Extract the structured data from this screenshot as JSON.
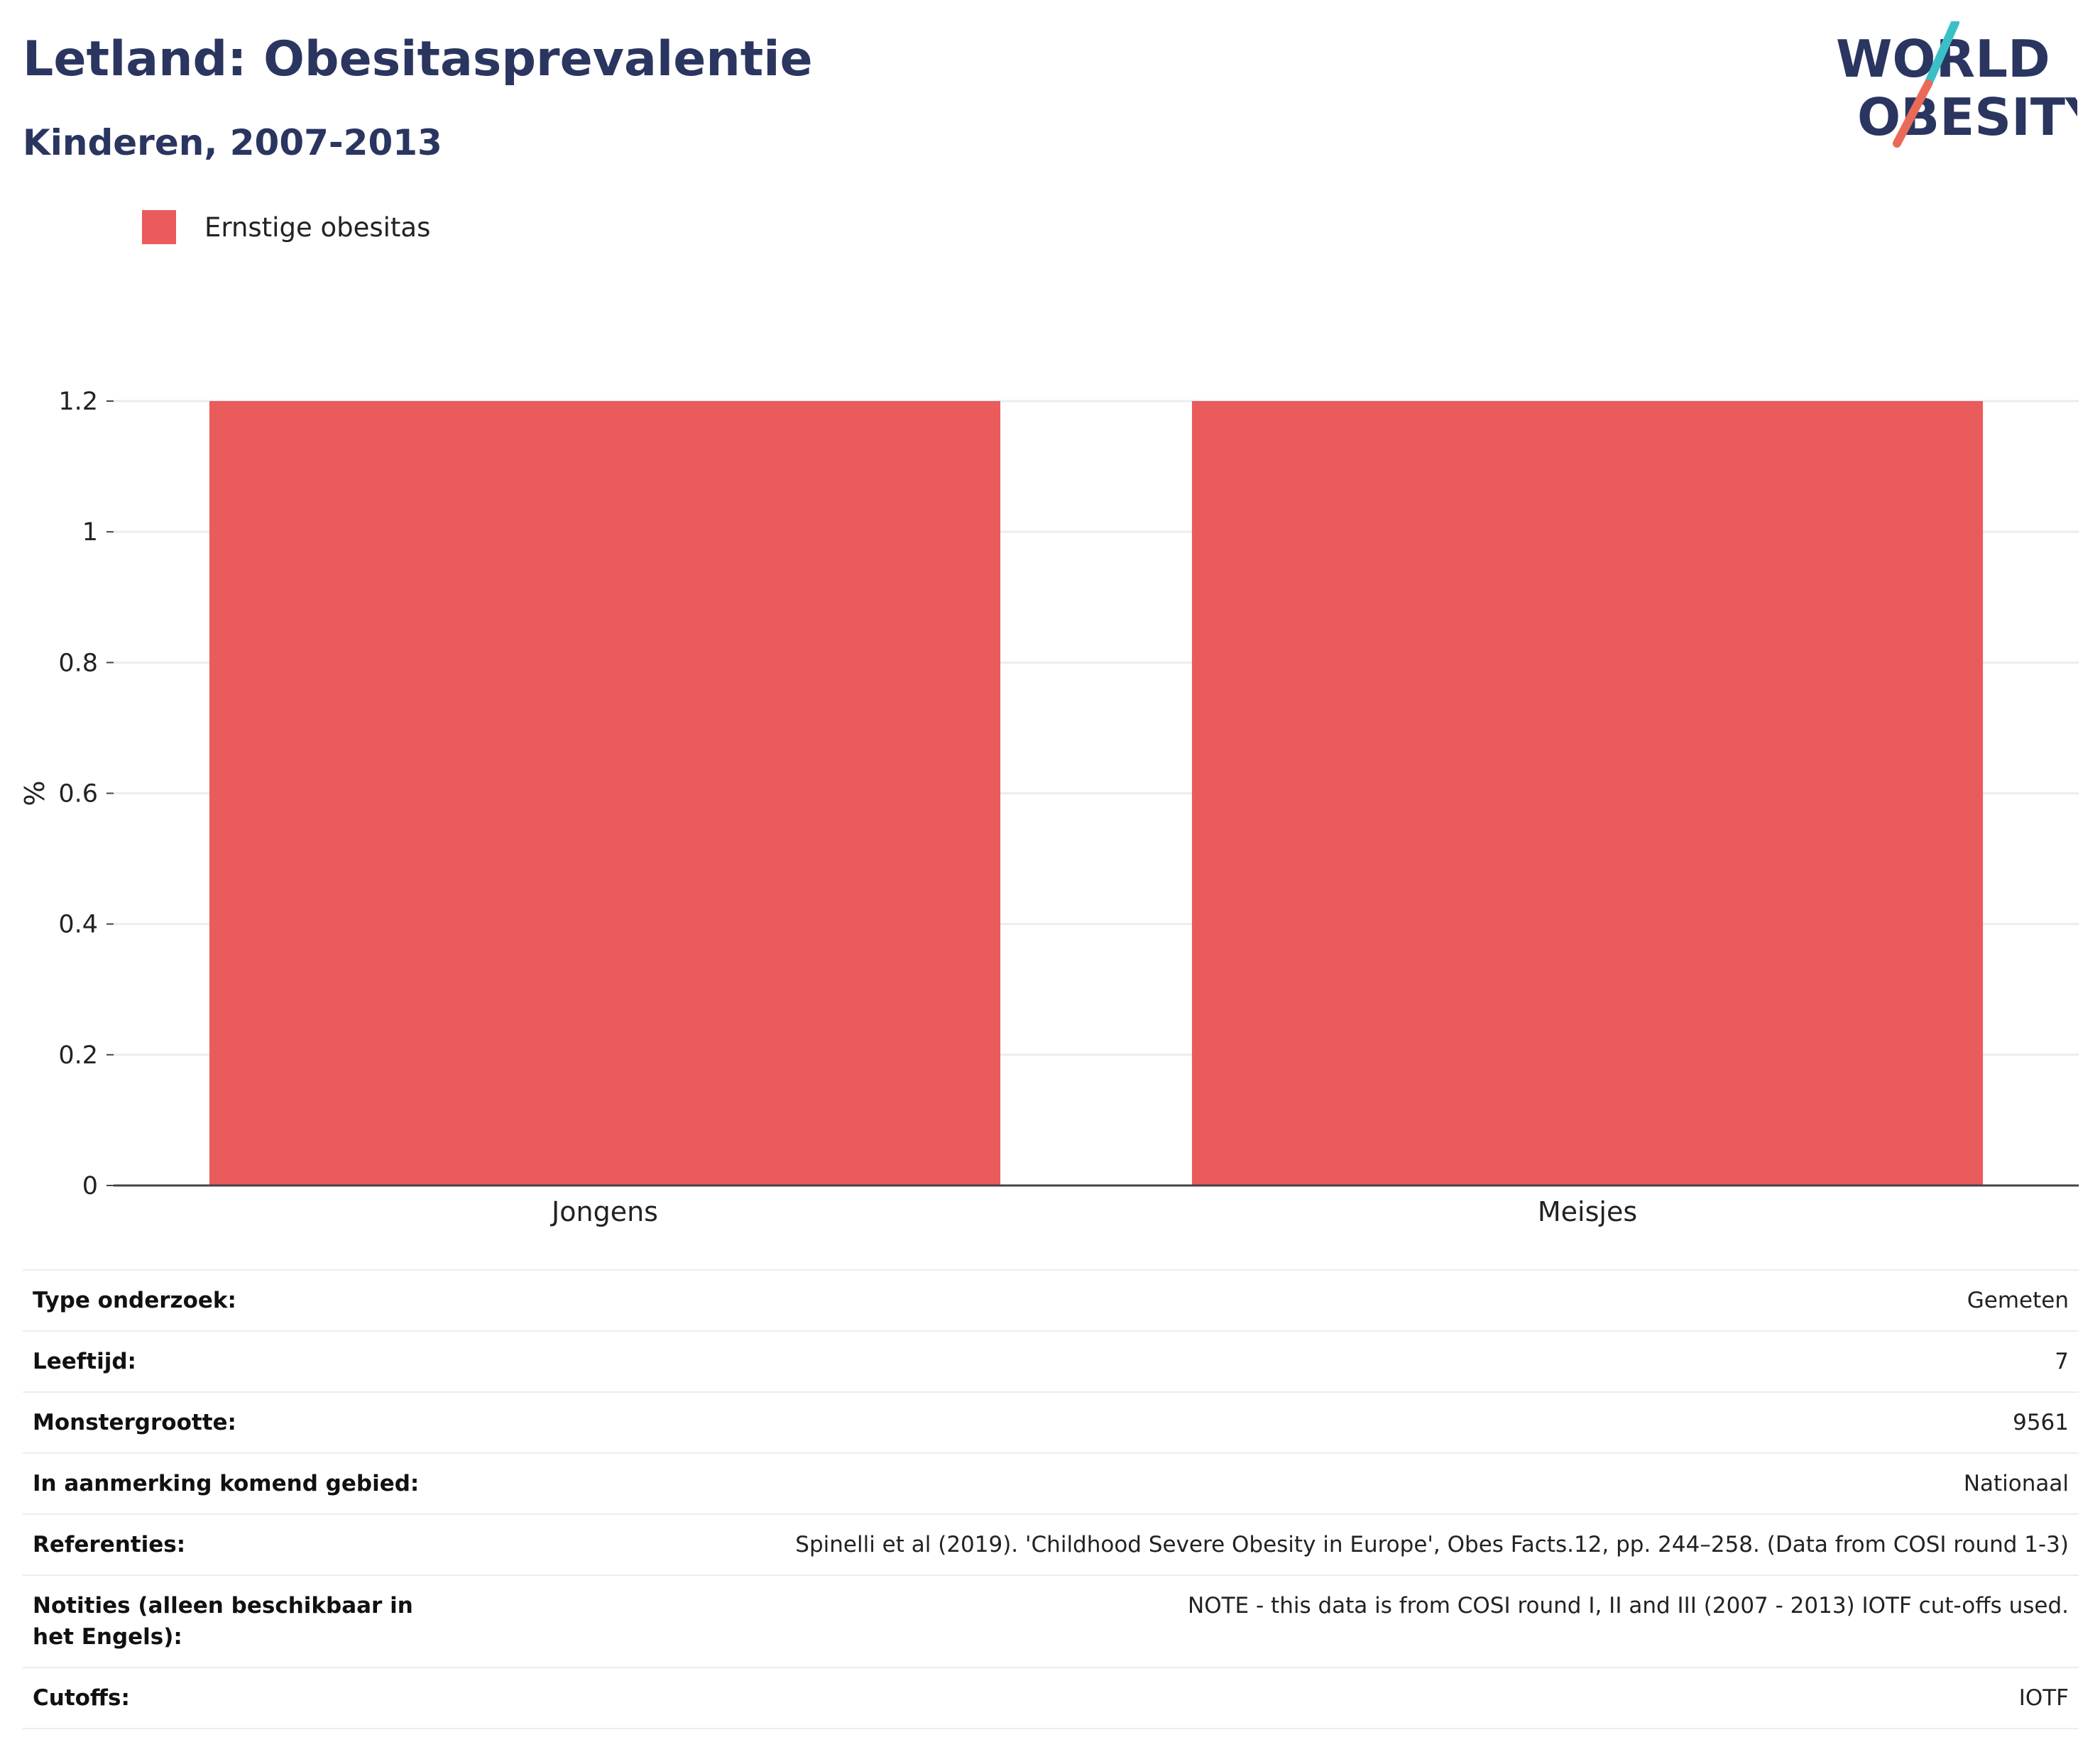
{
  "header": {
    "title": "Letland: Obesitasprevalentie",
    "subtitle": "Kinderen, 2007-2013"
  },
  "logo": {
    "line1": "WORLD",
    "line2": "OBESITY"
  },
  "colors": {
    "bar": "#ea5b5c",
    "title": "#2a3560",
    "logo_slash_top": "#3bbfc6",
    "logo_slash_bottom": "#ea6a5a"
  },
  "chart_data": {
    "type": "bar",
    "categories": [
      "Jongens",
      "Meisjes"
    ],
    "series": [
      {
        "name": "Ernstige obesitas",
        "values": [
          1.2,
          1.2
        ]
      }
    ],
    "ylabel": "%",
    "ylim": [
      0,
      1.2
    ],
    "yticks": [
      0,
      0.2,
      0.4,
      0.6,
      0.8,
      1,
      1.2
    ],
    "ytick_labels": [
      "0",
      "0.2",
      "0.4",
      "0.6",
      "0.8",
      "1",
      "1.2"
    ],
    "grid": true,
    "legend_position": "top-left"
  },
  "info_table": [
    {
      "key": "Type onderzoek:",
      "value": "Gemeten"
    },
    {
      "key": "Leeftijd:",
      "value": "7"
    },
    {
      "key": "Monstergrootte:",
      "value": "9561"
    },
    {
      "key": "In aanmerking komend gebied:",
      "value": "Nationaal"
    },
    {
      "key": "Referenties:",
      "value": "Spinelli et al (2019). 'Childhood Severe Obesity in Europe', Obes Facts.12, pp. 244–258. (Data from COSI round 1-3)"
    },
    {
      "key": "Notities (alleen beschikbaar in het Engels):",
      "value": "NOTE - this data is from COSI round I, II and III (2007 - 2013) IOTF cut-offs used."
    },
    {
      "key": "Cutoffs:",
      "value": "IOTF"
    }
  ]
}
